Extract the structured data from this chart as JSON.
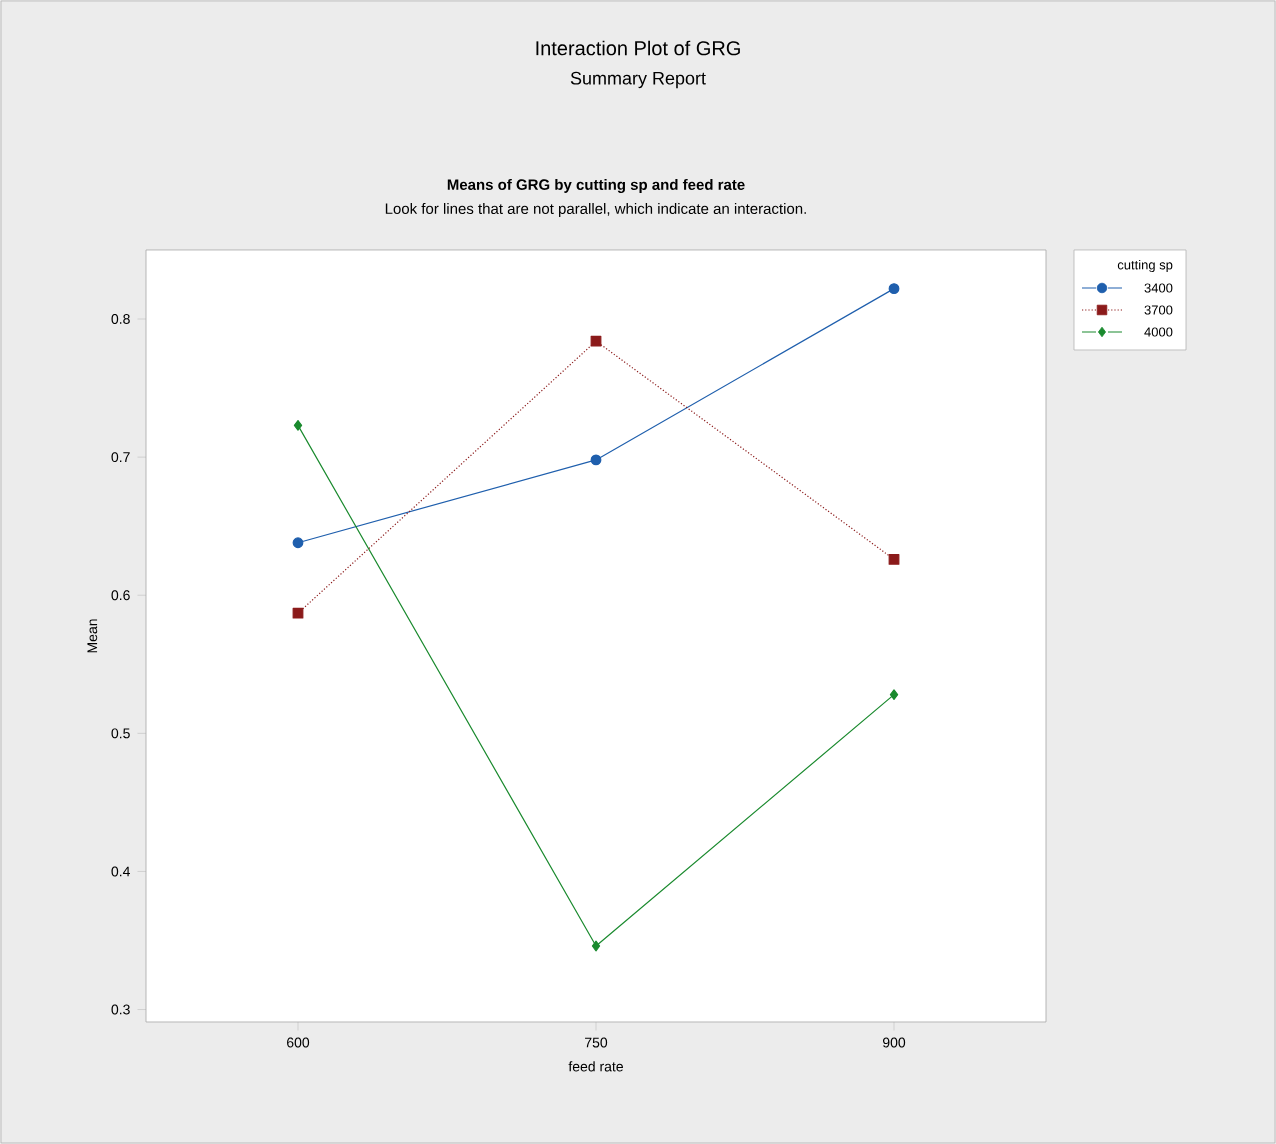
{
  "chart_data": {
    "type": "line",
    "title": "Interaction Plot of GRG",
    "subtitle": "Summary Report",
    "annotations": [
      "**Means of GRG by cutting sp and feed rate**",
      "Look for lines that are not parallel, which indicate an interaction."
    ],
    "xlabel": "feed rate",
    "ylabel": "Mean",
    "legend_title": "cutting sp",
    "legend": "top right",
    "categories": [
      "600",
      "750",
      "900"
    ],
    "ylim": [
      0.291,
      0.85
    ],
    "yticks": [
      0.3,
      0.4,
      0.5,
      0.6,
      0.7,
      0.8
    ],
    "series": [
      {
        "name": "3400",
        "color": "#1f5fad",
        "marker": "circle",
        "line_style": "solid",
        "values": [
          0.638,
          0.698,
          0.822
        ]
      },
      {
        "name": "3700",
        "color": "#8b1a1a",
        "marker": "square",
        "line_style": "dotted",
        "values": [
          0.587,
          0.784,
          0.626
        ]
      },
      {
        "name": "4000",
        "color": "#1a8a2e",
        "marker": "diamond",
        "line_style": "solid",
        "values": [
          0.723,
          0.346,
          0.528
        ]
      }
    ]
  }
}
